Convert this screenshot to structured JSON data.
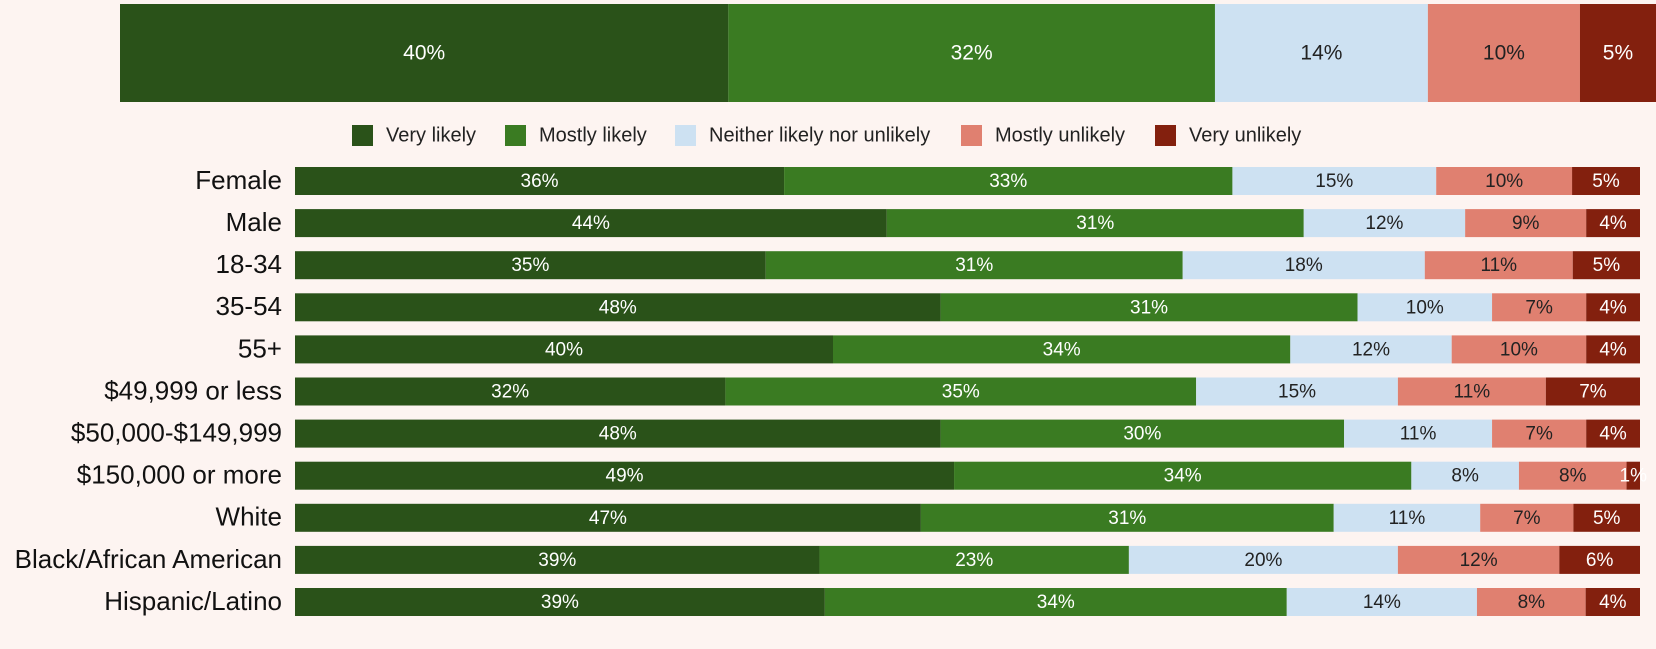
{
  "chart_data": {
    "type": "bar",
    "orientation": "horizontal",
    "stacked": "100%",
    "legend_position": "top",
    "grid": false,
    "series": [
      {
        "name": "Very likely",
        "color": "#2a5219",
        "label_color": "#ffffff"
      },
      {
        "name": "Mostly likely",
        "color": "#3a7b22",
        "label_color": "#ffffff"
      },
      {
        "name": "Neither likely nor unlikely",
        "color": "#cde1f2",
        "label_color": "#222222"
      },
      {
        "name": "Mostly unlikely",
        "color": "#e08070",
        "label_color": "#222222"
      },
      {
        "name": "Very unlikely",
        "color": "#83200e",
        "label_color": "#ffffff"
      }
    ],
    "total": {
      "values": [
        40,
        32,
        14,
        10,
        5
      ],
      "labels": [
        "40%",
        "32%",
        "14%",
        "10%",
        "5%"
      ]
    },
    "categories": [
      "Female",
      "Male",
      "18-34",
      "35-54",
      "55+",
      "$49,999 or less",
      "$50,000-$149,999",
      "$150,000 or more",
      "White",
      "Black/African American",
      "Hispanic/Latino"
    ],
    "rows": [
      {
        "values": [
          36,
          33,
          15,
          10,
          5
        ],
        "labels": [
          "36%",
          "33%",
          "15%",
          "10%",
          "5%"
        ]
      },
      {
        "values": [
          44,
          31,
          12,
          9,
          4
        ],
        "labels": [
          "44%",
          "31%",
          "12%",
          "9%",
          "4%"
        ]
      },
      {
        "values": [
          35,
          31,
          18,
          11,
          5
        ],
        "labels": [
          "35%",
          "31%",
          "18%",
          "11%",
          "5%"
        ]
      },
      {
        "values": [
          48,
          31,
          10,
          7,
          4
        ],
        "labels": [
          "48%",
          "31%",
          "10%",
          "7%",
          "4%"
        ]
      },
      {
        "values": [
          40,
          34,
          12,
          10,
          4
        ],
        "labels": [
          "40%",
          "34%",
          "12%",
          "10%",
          "4%"
        ]
      },
      {
        "values": [
          32,
          35,
          15,
          11,
          7
        ],
        "labels": [
          "32%",
          "35%",
          "15%",
          "11%",
          "7%"
        ]
      },
      {
        "values": [
          48,
          30,
          11,
          7,
          4
        ],
        "labels": [
          "48%",
          "30%",
          "11%",
          "7%",
          "4%"
        ]
      },
      {
        "values": [
          49,
          34,
          8,
          8,
          1
        ],
        "labels": [
          "49%",
          "34%",
          "8%",
          "8%",
          "1%"
        ]
      },
      {
        "values": [
          47,
          31,
          11,
          7,
          5
        ],
        "labels": [
          "47%",
          "31%",
          "11%",
          "7%",
          "5%"
        ]
      },
      {
        "values": [
          39,
          23,
          20,
          12,
          6
        ],
        "labels": [
          "39%",
          "23%",
          "20%",
          "12%",
          "6%"
        ]
      },
      {
        "values": [
          39,
          34,
          14,
          8,
          4
        ],
        "labels": [
          "39%",
          "34%",
          "14%",
          "8%",
          "4%"
        ]
      }
    ]
  }
}
